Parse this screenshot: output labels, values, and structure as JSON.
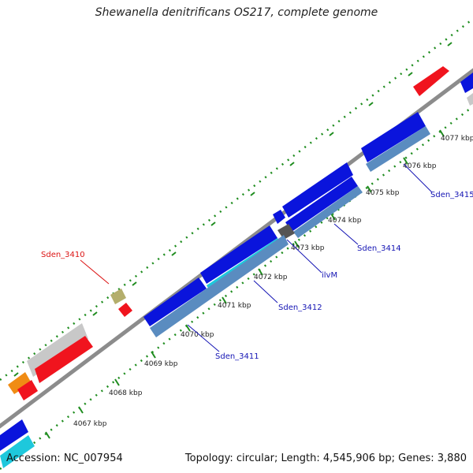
{
  "title": "Shewanella denitrificans OS217, complete genome",
  "footer": {
    "accession": "Accession: NC_007954",
    "topology": "Topology: circular; Length: 4,545,906 bp; Genes: 3,880"
  },
  "kbp_labels": [
    "4067 kbp",
    "4068 kbp",
    "4069 kbp",
    "4070 kbp",
    "4071 kbp",
    "4072 kbp",
    "4073 kbp",
    "4074 kbp",
    "4075 kbp",
    "4076 kbp",
    "4077 kbp"
  ],
  "gene_labels": [
    "Sden_3410",
    "Sden_3411",
    "Sden_3412",
    "ilvM",
    "Sden_3414",
    "Sden_3415"
  ],
  "colors": {
    "blue": "#0a14dc",
    "steel": "#5a8cc0",
    "cyan": "#1ec8dc",
    "red": "#f0141e",
    "orange": "#f08c14",
    "grey": "#c8c8c8",
    "olive": "#b4ae6c",
    "darkgrey": "#555555",
    "backbone": "#8c8c8c",
    "tick": "#1e8c1e",
    "highlight_label": "#dc1414",
    "label": "#1414b4"
  }
}
